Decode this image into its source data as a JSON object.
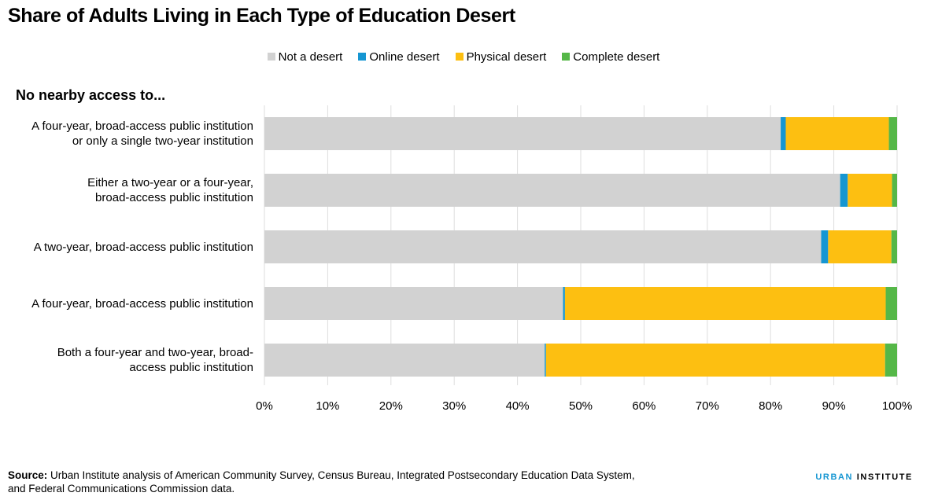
{
  "header": {
    "title": "Share of Adults Living in Each Type of Education Desert",
    "subtitle": "No nearby access to..."
  },
  "chart_data": {
    "type": "bar",
    "orientation": "horizontal",
    "stacked": true,
    "categories": [
      [
        "A four-year, broad-access public institution",
        "or only a single two-year institution"
      ],
      [
        "Either a two-year or a four-year,",
        "broad-access public institution"
      ],
      [
        "A two-year, broad-access public institution"
      ],
      [
        "A four-year, broad-access public institution"
      ],
      [
        "Both a four-year and two-year, broad-",
        "access public institution"
      ]
    ],
    "series": [
      {
        "name": "Not a desert",
        "color": "#d2d2d2",
        "values": [
          81.6,
          91.0,
          88.0,
          47.2,
          44.3
        ]
      },
      {
        "name": "Online desert",
        "color": "#1696d2",
        "values": [
          0.8,
          1.2,
          1.1,
          0.3,
          0.2
        ]
      },
      {
        "name": "Physical desert",
        "color": "#fdbf11",
        "values": [
          16.3,
          7.0,
          10.0,
          50.7,
          53.6
        ]
      },
      {
        "name": "Complete desert",
        "color": "#55b748",
        "values": [
          1.3,
          0.8,
          0.9,
          1.8,
          1.9
        ]
      }
    ],
    "xlim": [
      0,
      100
    ],
    "xticks": [
      "0%",
      "10%",
      "20%",
      "30%",
      "40%",
      "50%",
      "60%",
      "70%",
      "80%",
      "90%",
      "100%"
    ],
    "xgrid": true,
    "legend_position": "top"
  },
  "footer": {
    "source_label": "Source:",
    "source_text": "Urban Institute analysis of American Community Survey, Census Bureau, Integrated Postsecondary Education Data System, and Federal Communications Commission data.",
    "brand_urban": "URBAN",
    "brand_institute": "INSTITUTE"
  }
}
